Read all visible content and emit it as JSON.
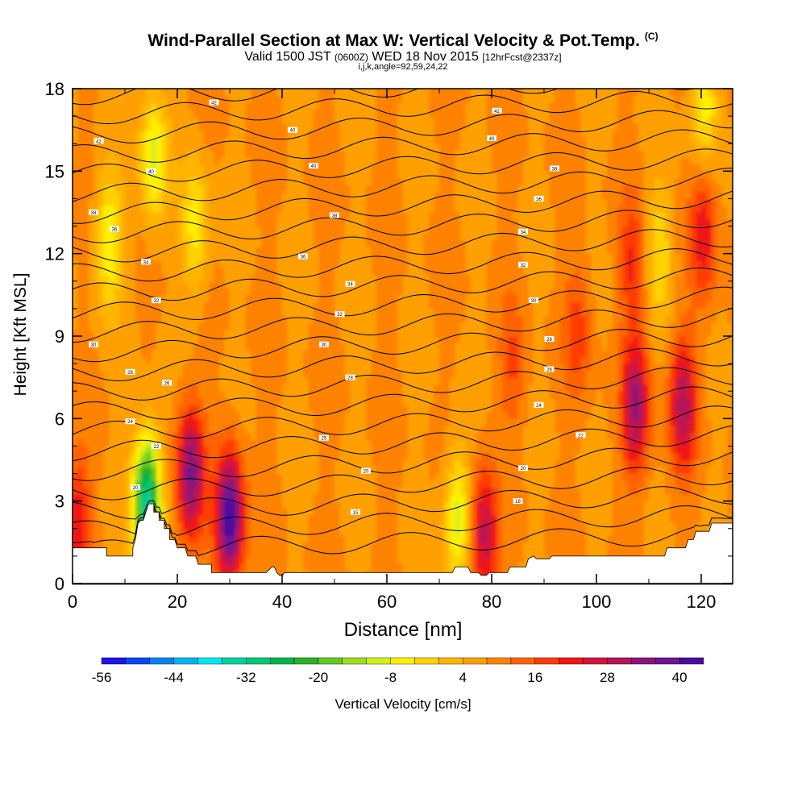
{
  "header": {
    "title": "Wind-Parallel Section at Max W: Vertical Velocity & Pot.Temp.",
    "copyright": "(C)",
    "valid_prefix": "Valid 1500 JST",
    "valid_utc": "(0600Z)",
    "valid_date": "WED 18 Nov 2015",
    "forecast": "[12hrFcst@2337z]",
    "section_params": "i,j,k,angle=92,59,24,22"
  },
  "chart_data": {
    "type": "heatmap",
    "title": "Wind-Parallel Section at Max W: Vertical Velocity & Pot.Temp.",
    "xlabel": "Distance [nm]",
    "ylabel": "Height [Kft MSL]",
    "xlim": [
      0,
      126
    ],
    "ylim": [
      0,
      18
    ],
    "xticks": [
      0,
      20,
      40,
      60,
      80,
      100,
      120
    ],
    "yticks": [
      0,
      3,
      6,
      9,
      12,
      15,
      18
    ],
    "colorbar": {
      "label": "Vertical Velocity [cm/s]",
      "range": [
        -56,
        44
      ],
      "step": 4,
      "tick_labels": [
        "-56",
        "-44",
        "-32",
        "-20",
        "-8",
        "4",
        "16",
        "28",
        "40"
      ],
      "colors": [
        "#1e14e6",
        "#0a46f0",
        "#0082f0",
        "#00b4f0",
        "#00e6f0",
        "#00d2a0",
        "#00c878",
        "#00b450",
        "#28b428",
        "#64c81e",
        "#a0dc1e",
        "#d2f01e",
        "#fff000",
        "#ffd200",
        "#ffb400",
        "#ffa000",
        "#ff8200",
        "#ff6400",
        "#ff3c00",
        "#f01414",
        "#d2143c",
        "#b4145a",
        "#8c1478",
        "#6e1496",
        "#4b0aa0"
      ]
    },
    "maxima": [
      {
        "x": 30,
        "y": 2.4,
        "w": 44
      },
      {
        "x": 22.5,
        "y": 4.0,
        "w": 36
      },
      {
        "x": 107.5,
        "y": 6.5,
        "w": 32
      },
      {
        "x": 116.5,
        "y": 6.5,
        "w": 30
      },
      {
        "x": 78.5,
        "y": 1.8,
        "w": 30
      },
      {
        "x": 120.5,
        "y": 12.8,
        "w": 24
      },
      {
        "x": 0.8,
        "y": 2.2,
        "w": 24
      },
      {
        "x": 107,
        "y": 11.6,
        "w": 20
      },
      {
        "x": 96.5,
        "y": 9.2,
        "w": 18
      },
      {
        "x": 84,
        "y": 8.0,
        "w": 16
      }
    ],
    "minima": [
      {
        "x": 14.2,
        "y": 3.0,
        "w": -34
      },
      {
        "x": 73.5,
        "y": 2.5,
        "w": -10
      },
      {
        "x": 15.5,
        "y": 15.5,
        "w": -10
      },
      {
        "x": 7,
        "y": 12.5,
        "w": -8
      },
      {
        "x": 23.5,
        "y": 13.0,
        "w": -6
      },
      {
        "x": 120.5,
        "y": 17.5,
        "w": -6
      },
      {
        "x": 112,
        "y": 12.0,
        "w": -4
      }
    ],
    "theta_contour_labels": [
      "15",
      "20",
      "25",
      "28",
      "30",
      "32",
      "34",
      "36",
      "38",
      "40",
      "42"
    ],
    "theta_labels_placed": [
      {
        "x": 54,
        "y": 2.6,
        "t": "15"
      },
      {
        "x": 56,
        "y": 4.1,
        "t": "20"
      },
      {
        "x": 48,
        "y": 5.3,
        "t": "25"
      },
      {
        "x": 53,
        "y": 7.5,
        "t": "28"
      },
      {
        "x": 48,
        "y": 8.7,
        "t": "30"
      },
      {
        "x": 51,
        "y": 9.8,
        "t": "32"
      },
      {
        "x": 53,
        "y": 10.9,
        "t": "34"
      },
      {
        "x": 44,
        "y": 11.9,
        "t": "36"
      },
      {
        "x": 50,
        "y": 13.4,
        "t": "38"
      },
      {
        "x": 46,
        "y": 15.2,
        "t": "40"
      },
      {
        "x": 42,
        "y": 16.5,
        "t": "40"
      },
      {
        "x": 27,
        "y": 17.5,
        "t": "42"
      },
      {
        "x": 81,
        "y": 17.2,
        "t": "42"
      },
      {
        "x": 80,
        "y": 16.2,
        "t": "40"
      },
      {
        "x": 92,
        "y": 15.1,
        "t": "38"
      },
      {
        "x": 89,
        "y": 14.0,
        "t": "36"
      },
      {
        "x": 86,
        "y": 12.8,
        "t": "34"
      },
      {
        "x": 86,
        "y": 11.6,
        "t": "32"
      },
      {
        "x": 88,
        "y": 10.3,
        "t": "30"
      },
      {
        "x": 91,
        "y": 8.9,
        "t": "28"
      },
      {
        "x": 91,
        "y": 7.8,
        "t": "26"
      },
      {
        "x": 89,
        "y": 6.5,
        "t": "24"
      },
      {
        "x": 97,
        "y": 5.4,
        "t": "22"
      },
      {
        "x": 86,
        "y": 4.2,
        "t": "20"
      },
      {
        "x": 85,
        "y": 3.0,
        "t": "18"
      },
      {
        "x": 5,
        "y": 16.1,
        "t": "42"
      },
      {
        "x": 15,
        "y": 15.0,
        "t": "40"
      },
      {
        "x": 4,
        "y": 13.5,
        "t": "38"
      },
      {
        "x": 8,
        "y": 12.9,
        "t": "36"
      },
      {
        "x": 14,
        "y": 11.7,
        "t": "34"
      },
      {
        "x": 16,
        "y": 10.3,
        "t": "32"
      },
      {
        "x": 4,
        "y": 8.7,
        "t": "30"
      },
      {
        "x": 11,
        "y": 7.7,
        "t": "28"
      },
      {
        "x": 18,
        "y": 7.3,
        "t": "26"
      },
      {
        "x": 11,
        "y": 5.9,
        "t": "24"
      },
      {
        "x": 16,
        "y": 5.0,
        "t": "22"
      },
      {
        "x": 12,
        "y": 3.5,
        "t": "20"
      }
    ],
    "terrain_kft": [
      [
        0,
        1.3
      ],
      [
        6.5,
        1.3
      ],
      [
        6.5,
        1.0
      ],
      [
        11.5,
        1.0
      ],
      [
        11.5,
        1.3
      ],
      [
        12,
        1.6
      ],
      [
        12.5,
        2.2
      ],
      [
        13,
        2.3
      ],
      [
        13.5,
        2.3
      ],
      [
        14,
        2.6
      ],
      [
        14.5,
        2.9
      ],
      [
        15.5,
        2.9
      ],
      [
        15.5,
        2.6
      ],
      [
        16.5,
        2.6
      ],
      [
        16.5,
        2.3
      ],
      [
        17.5,
        2.3
      ],
      [
        17.5,
        2.0
      ],
      [
        18.5,
        2.0
      ],
      [
        18.5,
        1.6
      ],
      [
        19.5,
        1.6
      ],
      [
        20,
        1.3
      ],
      [
        21.5,
        1.3
      ],
      [
        22,
        1.0
      ],
      [
        23.5,
        1.0
      ],
      [
        24,
        0.7
      ],
      [
        26.5,
        0.7
      ],
      [
        26.5,
        0.4
      ],
      [
        37,
        0.4
      ],
      [
        38,
        0.6
      ],
      [
        38.5,
        0.6
      ],
      [
        39,
        0.4
      ],
      [
        39.5,
        0.3
      ],
      [
        40,
        0.3
      ],
      [
        40.5,
        0.4
      ],
      [
        72.5,
        0.4
      ],
      [
        73,
        0.6
      ],
      [
        75.5,
        0.6
      ],
      [
        76,
        0.4
      ],
      [
        77.5,
        0.4
      ],
      [
        78,
        0.3
      ],
      [
        79,
        0.3
      ],
      [
        79.5,
        0.4
      ],
      [
        83,
        0.4
      ],
      [
        83.5,
        0.6
      ],
      [
        86.5,
        0.6
      ],
      [
        87,
        0.9
      ],
      [
        88,
        1.0
      ],
      [
        88.5,
        0.9
      ],
      [
        91,
        0.9
      ],
      [
        91.5,
        1.0
      ],
      [
        113,
        1.0
      ],
      [
        113.5,
        1.3
      ],
      [
        117,
        1.3
      ],
      [
        117.5,
        1.6
      ],
      [
        118.5,
        1.6
      ],
      [
        119,
        1.9
      ],
      [
        121.5,
        1.9
      ],
      [
        122,
        2.2
      ],
      [
        126,
        2.2
      ]
    ]
  }
}
